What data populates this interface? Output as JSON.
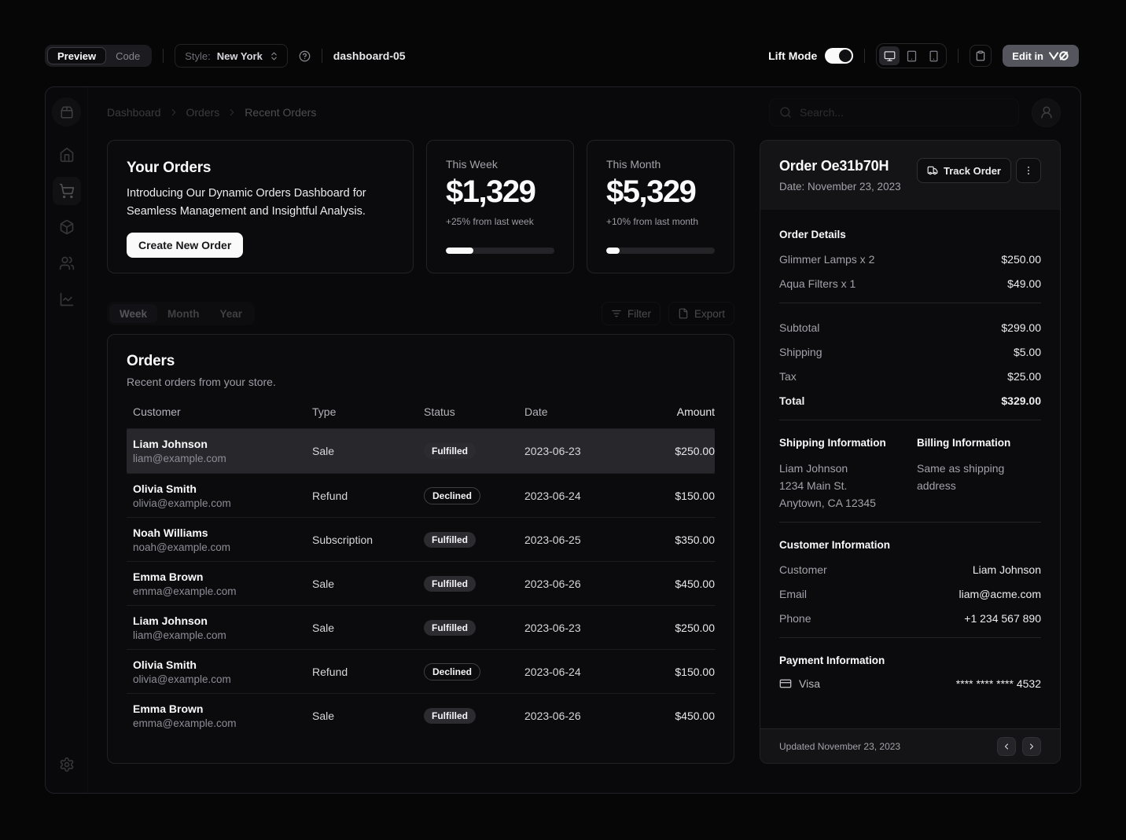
{
  "toolbar": {
    "preview_tab": "Preview",
    "code_tab": "Code",
    "style_label": "Style:",
    "style_value": "New York",
    "block_title": "dashboard-05",
    "lift_mode_label": "Lift Mode",
    "edit_button_label": "Edit in"
  },
  "dashboard": {
    "breadcrumb": [
      "Dashboard",
      "Orders",
      "Recent Orders"
    ],
    "search_placeholder": "Search...",
    "intro_card": {
      "title": "Your Orders",
      "description": "Introducing Our Dynamic Orders Dashboard for Seamless Management and Insightful Analysis.",
      "button": "Create New Order"
    },
    "stat_cards": [
      {
        "label": "This Week",
        "value": "$1,329",
        "change": "+25% from last week",
        "progress": 25
      },
      {
        "label": "This Month",
        "value": "$5,329",
        "change": "+10% from last month",
        "progress": 12
      }
    ],
    "period_tabs": [
      "Week",
      "Month",
      "Year"
    ],
    "filter_label": "Filter",
    "export_label": "Export",
    "orders_card": {
      "title": "Orders",
      "description": "Recent orders from your store.",
      "columns": [
        "Customer",
        "Type",
        "Status",
        "Date",
        "Amount"
      ],
      "rows": [
        {
          "name": "Liam Johnson",
          "email": "liam@example.com",
          "type": "Sale",
          "status": "Fulfilled",
          "date": "2023-06-23",
          "amount": "$250.00"
        },
        {
          "name": "Olivia Smith",
          "email": "olivia@example.com",
          "type": "Refund",
          "status": "Declined",
          "date": "2023-06-24",
          "amount": "$150.00"
        },
        {
          "name": "Noah Williams",
          "email": "noah@example.com",
          "type": "Subscription",
          "status": "Fulfilled",
          "date": "2023-06-25",
          "amount": "$350.00"
        },
        {
          "name": "Emma Brown",
          "email": "emma@example.com",
          "type": "Sale",
          "status": "Fulfilled",
          "date": "2023-06-26",
          "amount": "$450.00"
        },
        {
          "name": "Liam Johnson",
          "email": "liam@example.com",
          "type": "Sale",
          "status": "Fulfilled",
          "date": "2023-06-23",
          "amount": "$250.00"
        },
        {
          "name": "Olivia Smith",
          "email": "olivia@example.com",
          "type": "Refund",
          "status": "Declined",
          "date": "2023-06-24",
          "amount": "$150.00"
        },
        {
          "name": "Emma Brown",
          "email": "emma@example.com",
          "type": "Sale",
          "status": "Fulfilled",
          "date": "2023-06-26",
          "amount": "$450.00"
        }
      ]
    },
    "order_panel": {
      "title": "Order Oe31b70H",
      "date_line": "Date: November 23, 2023",
      "track_button": "Track Order",
      "details_heading": "Order Details",
      "items": [
        {
          "label": "Glimmer Lamps x 2",
          "value": "$250.00"
        },
        {
          "label": "Aqua Filters x 1",
          "value": "$49.00"
        }
      ],
      "summary": [
        {
          "label": "Subtotal",
          "value": "$299.00"
        },
        {
          "label": "Shipping",
          "value": "$5.00"
        },
        {
          "label": "Tax",
          "value": "$25.00"
        },
        {
          "label": "Total",
          "value": "$329.00"
        }
      ],
      "shipping_heading": "Shipping Information",
      "shipping_address": [
        "Liam Johnson",
        "1234 Main St.",
        "Anytown, CA 12345"
      ],
      "billing_heading": "Billing Information",
      "billing_note": "Same as shipping address",
      "customer_heading": "Customer Information",
      "customer_rows": [
        {
          "label": "Customer",
          "value": "Liam Johnson"
        },
        {
          "label": "Email",
          "value": "liam@acme.com"
        },
        {
          "label": "Phone",
          "value": "+1 234 567 890"
        }
      ],
      "payment_heading": "Payment Information",
      "payment_method": "Visa",
      "payment_number": "**** **** **** 4532",
      "footer_text": "Updated November 23, 2023"
    }
  },
  "colors": {
    "accent_row": "#27272c",
    "primary": "#fafafa",
    "muted_text": "#a1a1aa",
    "panel_header": "#141417"
  }
}
